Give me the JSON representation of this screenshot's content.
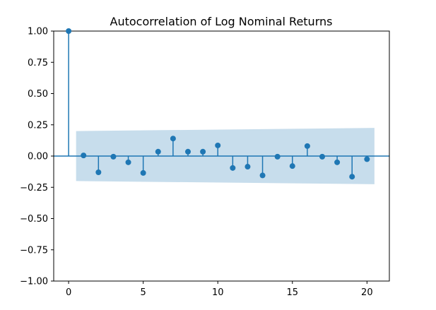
{
  "chart_data": {
    "type": "scatter",
    "subtype": "stem",
    "title": "Autocorrelation of Log Nominal Returns",
    "xlabel": "",
    "ylabel": "",
    "xlim": [
      -1,
      21.5
    ],
    "ylim": [
      -1.0,
      1.0
    ],
    "xticks": [
      0,
      5,
      10,
      15,
      20
    ],
    "xtick_labels": [
      "0",
      "5",
      "10",
      "15",
      "20"
    ],
    "yticks": [
      1.0,
      0.75,
      0.5,
      0.25,
      0.0,
      -0.25,
      -0.5,
      -0.75,
      -1.0
    ],
    "ytick_labels": [
      "1.00",
      "0.75",
      "0.50",
      "0.25",
      "0.00",
      "−0.25",
      "−0.50",
      "−0.75",
      "−1.00"
    ],
    "grid": false,
    "colors": {
      "marker": "#1f77b4",
      "band": "#1f77b4",
      "axis": "#000000"
    },
    "series": [
      {
        "x": [
          0,
          1,
          2,
          3,
          4,
          5,
          6,
          7,
          8,
          9,
          10,
          11,
          12,
          13,
          14,
          15,
          16,
          17,
          18,
          19,
          20
        ],
        "values": [
          1.0,
          0.005,
          -0.13,
          -0.005,
          -0.05,
          -0.135,
          0.035,
          0.14,
          0.035,
          0.035,
          0.085,
          -0.095,
          -0.085,
          -0.155,
          -0.005,
          -0.08,
          0.08,
          -0.005,
          -0.05,
          -0.165,
          -0.025
        ]
      }
    ],
    "confidence_band": {
      "x": [
        0.5,
        20.5
      ],
      "upper": [
        0.2,
        0.225
      ],
      "lower": [
        -0.2,
        -0.225
      ]
    }
  }
}
